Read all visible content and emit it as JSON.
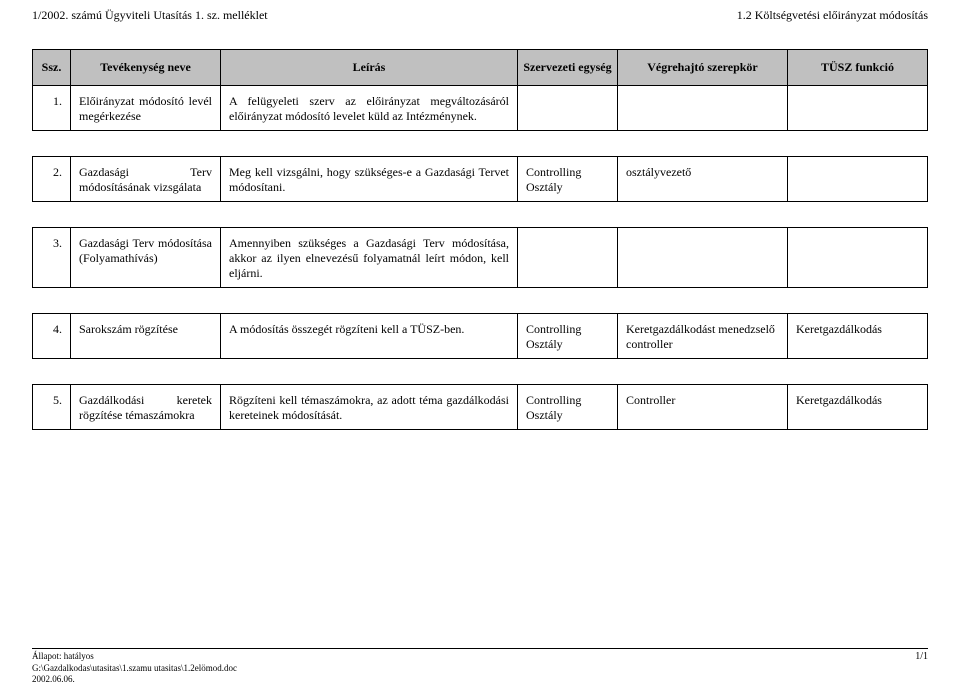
{
  "header": {
    "left": "1/2002. számú Ügyviteli Utasítás 1. sz. melléklet",
    "right": "1.2 Költségvetési előirányzat módosítás"
  },
  "columns": {
    "ssz": "Ssz.",
    "tevekenyseg": "Tevékenység neve",
    "leiras": "Leírás",
    "szervezeti": "Szervezeti egység",
    "vegrehajto": "Végrehajtó szerepkör",
    "tusz": "TÜSZ funkció"
  },
  "rows": {
    "r1": {
      "num": "1.",
      "tev": "Előirányzat módosító levél megérkezése",
      "leiras": "A felügyeleti szerv az előirányzat megváltozásáról előirányzat módosító levelet küld az Intézménynek.",
      "szerv": "",
      "vegre": "",
      "tusz": ""
    },
    "r2": {
      "num": "2.",
      "tev": "Gazdasági Terv módosításának vizsgálata",
      "leiras": "Meg kell vizsgálni, hogy szükséges-e a Gazdasági Tervet módosítani.",
      "szerv": "Controlling Osztály",
      "vegre": "osztályvezető",
      "tusz": ""
    },
    "r3": {
      "num": "3.",
      "tev": "Gazdasági Terv módosítása\n(Folyamathívás)",
      "leiras": "Amennyiben szükséges a Gazdasági Terv módosítása, akkor az ilyen elnevezésű folyamatnál leírt módon, kell eljárni.",
      "szerv": "",
      "vegre": "",
      "tusz": ""
    },
    "r4": {
      "num": "4.",
      "tev": "Sarokszám rögzítése",
      "leiras": "A módosítás összegét rögzíteni kell a TÜSZ-ben.",
      "szerv": "Controlling Osztály",
      "vegre": "Keretgazdálkodást menedzselő controller",
      "tusz": "Keretgazdálkodás"
    },
    "r5": {
      "num": "5.",
      "tev": "Gazdálkodási keretek rögzítése témaszámokra",
      "leiras": "Rögzíteni kell témaszámokra, az adott téma gazdálkodási kereteinek módosítását.",
      "szerv": "Controlling Osztály",
      "vegre": "Controller",
      "tusz": "Keretgazdálkodás"
    }
  },
  "footer": {
    "status": "Állapot: hatályos",
    "path": "G:\\Gazdalkodas\\utasitas\\1.szamu utasitas\\1.2elömod.doc",
    "date": "2002.06.06.",
    "page": "1/1"
  },
  "style": {
    "header_bg": "#c0c0c0",
    "border_color": "#000000",
    "page_bg": "#ffffff",
    "text_color": "#000000",
    "body_fontsize": 12,
    "footer_fontsize": 9
  }
}
